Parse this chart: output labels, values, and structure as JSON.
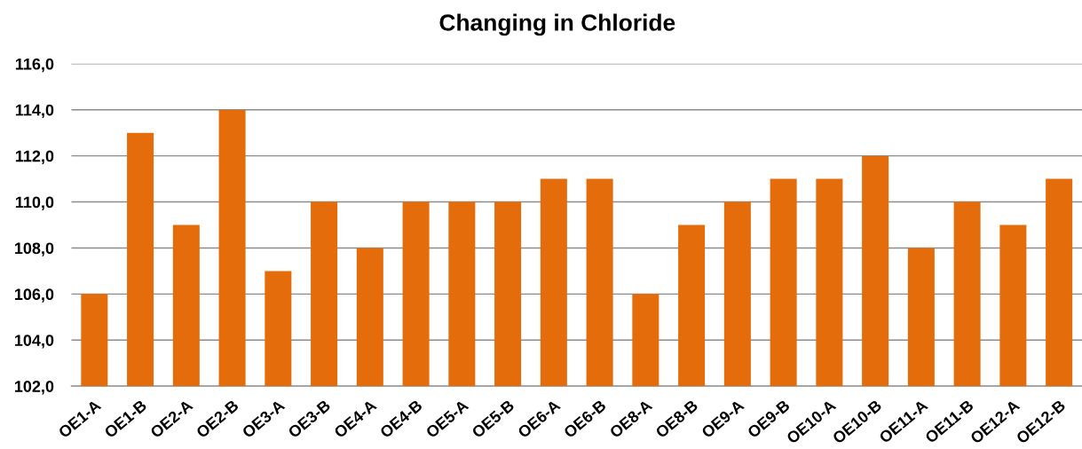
{
  "chart_data": {
    "type": "bar",
    "title": "Changing in Chloride",
    "categories": [
      "OE1-A",
      "OE1-B",
      "OE2-A",
      "OE2-B",
      "OE3-A",
      "OE3-B",
      "OE4-A",
      "OE4-B",
      "OE5-A",
      "OE5-B",
      "OE6-A",
      "OE6-B",
      "OE8-A",
      "OE8-B",
      "OE9-A",
      "OE9-B",
      "OE10-A",
      "OE10-B",
      "OE11-A",
      "OE11-B",
      "OE12-A",
      "OE12-B"
    ],
    "values": [
      106,
      113,
      109,
      114,
      107,
      110,
      108,
      110,
      110,
      110,
      111,
      111,
      106,
      109,
      110,
      111,
      111,
      112,
      108,
      110,
      109,
      111
    ],
    "color": "#e46c0a",
    "ylim": [
      102,
      116
    ],
    "yticks": [
      {
        "value": 102,
        "label": "102,0"
      },
      {
        "value": 104,
        "label": "104,0"
      },
      {
        "value": 106,
        "label": "106,0"
      },
      {
        "value": 108,
        "label": "108,0"
      },
      {
        "value": 110,
        "label": "110,0"
      },
      {
        "value": 112,
        "label": "112,0"
      },
      {
        "value": 114,
        "label": "114,0"
      },
      {
        "value": 116,
        "label": "116,0"
      }
    ],
    "grid": "y",
    "legend": false
  }
}
